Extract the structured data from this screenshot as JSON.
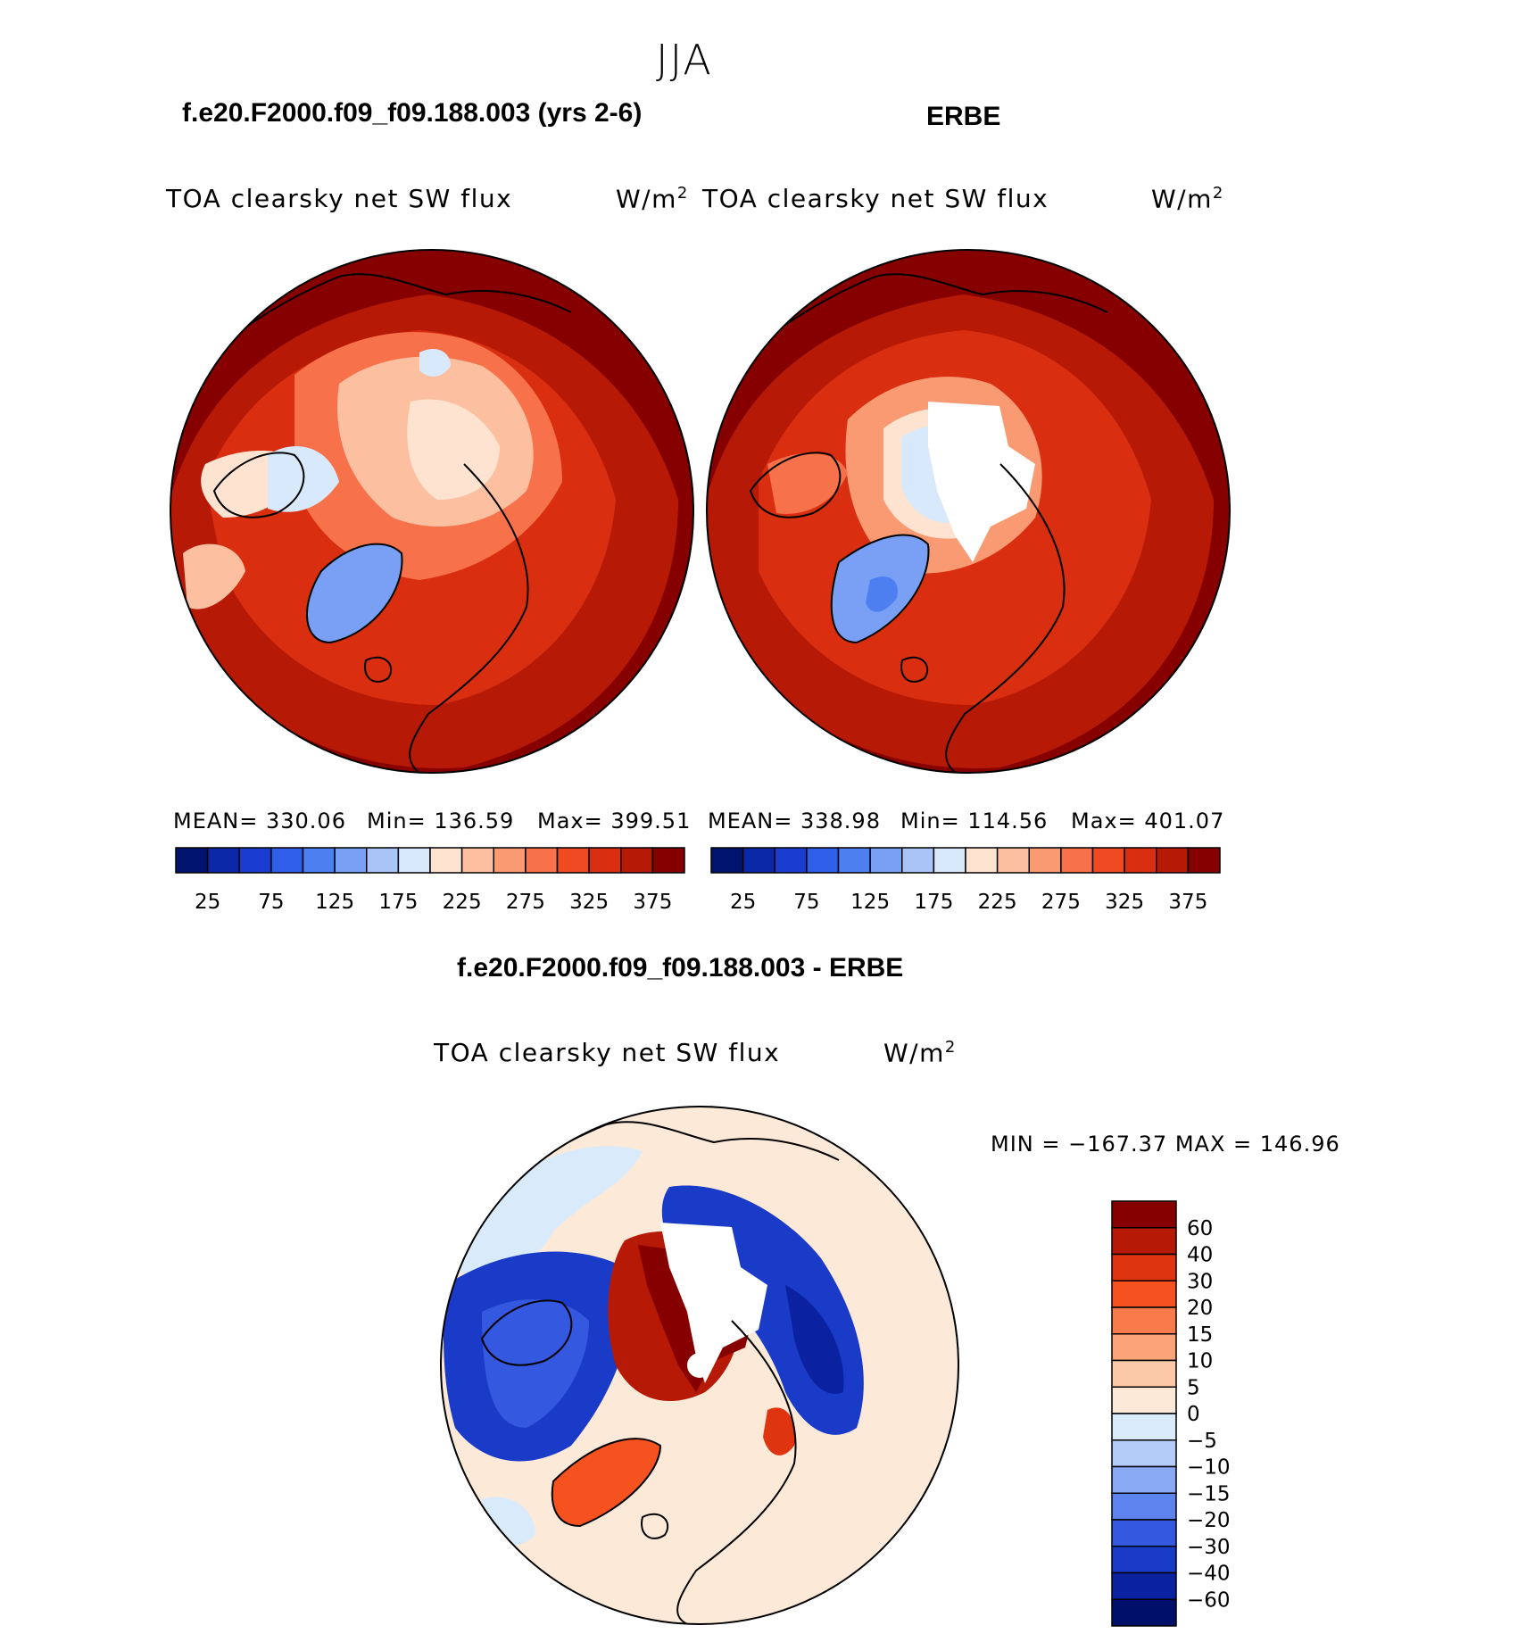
{
  "figure": {
    "title": "JJA",
    "variable": "TOA clearsky net SW flux",
    "units": "W/m",
    "units_sup": "2"
  },
  "panels": [
    {
      "title": "f.e20.F2000.f09_f09.188.003 (yrs 2-6)",
      "mean": "MEAN= 330.06",
      "min": "Min= 136.59",
      "max": "Max= 399.51"
    },
    {
      "title": "ERBE",
      "mean": "MEAN= 338.98",
      "min": "Min= 114.56",
      "max": "Max= 401.07"
    }
  ],
  "diff_panel": {
    "title": "f.e20.F2000.f09_f09.188.003 - ERBE",
    "minmax": "MIN = −167.37 MAX = 146.96"
  },
  "chart_data": [
    {
      "type": "heatmap",
      "projection": "polar stereographic (Northern Hemisphere)",
      "title": "f.e20.F2000.f09_f09.188.003 (yrs 2-6)",
      "colorbar": {
        "levels": [
          25,
          50,
          75,
          100,
          125,
          150,
          175,
          200,
          225,
          250,
          275,
          300,
          325,
          350,
          375
        ],
        "tick_labels": [
          "25",
          "75",
          "125",
          "175",
          "225",
          "275",
          "325",
          "375"
        ],
        "colors": [
          "#00136f",
          "#0a28a8",
          "#1a3cd0",
          "#2f5ee8",
          "#4d7ff0",
          "#7aa0f5",
          "#a9c5f8",
          "#d7e9fb",
          "#fde3d0",
          "#fcc0a0",
          "#f99a73",
          "#f7714a",
          "#f04a23",
          "#d92f10",
          "#b61a06",
          "#860000"
        ],
        "orientation": "horizontal"
      },
      "stats": {
        "mean": 330.06,
        "min": 136.59,
        "max": 399.51
      }
    },
    {
      "type": "heatmap",
      "projection": "polar stereographic (Northern Hemisphere)",
      "title": "ERBE",
      "colorbar": {
        "levels": [
          25,
          50,
          75,
          100,
          125,
          150,
          175,
          200,
          225,
          250,
          275,
          300,
          325,
          350,
          375
        ],
        "tick_labels": [
          "25",
          "75",
          "125",
          "175",
          "225",
          "275",
          "325",
          "375"
        ],
        "colors": [
          "#00136f",
          "#0a28a8",
          "#1a3cd0",
          "#2f5ee8",
          "#4d7ff0",
          "#7aa0f5",
          "#a9c5f8",
          "#d7e9fb",
          "#fde3d0",
          "#fcc0a0",
          "#f99a73",
          "#f7714a",
          "#f04a23",
          "#d92f10",
          "#b61a06",
          "#860000"
        ],
        "orientation": "horizontal"
      },
      "stats": {
        "mean": 338.98,
        "min": 114.56,
        "max": 401.07
      }
    },
    {
      "type": "heatmap",
      "projection": "polar stereographic (Northern Hemisphere)",
      "title": "f.e20.F2000.f09_f09.188.003 - ERBE",
      "colorbar": {
        "levels": [
          -60,
          -40,
          -30,
          -20,
          -15,
          -10,
          -5,
          0,
          5,
          10,
          15,
          20,
          30,
          40,
          60
        ],
        "tick_labels": [
          "60",
          "40",
          "30",
          "20",
          "15",
          "10",
          "5",
          "0",
          "−5",
          "−10",
          "−15",
          "−20",
          "−30",
          "−40",
          "−60"
        ],
        "colors": [
          "#860000",
          "#b61a06",
          "#de3410",
          "#f6521f",
          "#f97b4c",
          "#fba47a",
          "#fcc9a8",
          "#fde9d8",
          "#d9ebfb",
          "#b3cdf8",
          "#89a9f4",
          "#5e83ee",
          "#3458e0",
          "#1a3ac8",
          "#0a22a0",
          "#00106a"
        ],
        "orientation": "vertical"
      },
      "stats": {
        "min": -167.37,
        "max": 146.96
      }
    }
  ]
}
